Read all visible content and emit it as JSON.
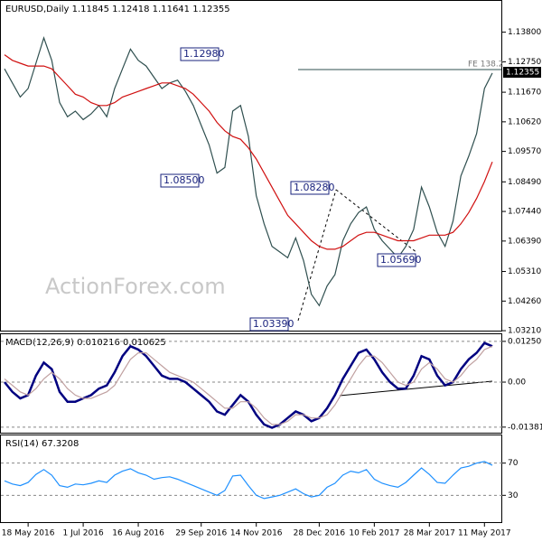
{
  "chart_data": [
    {
      "type": "line",
      "title": "EURUSD,Daily  1.11845 1.12418 1.11641 1.12355",
      "watermark": "ActionForex.com",
      "annotations": [
        "1.12980",
        "1.08500",
        "1.08280",
        "1.05690",
        "1.03390",
        "FE 138.2",
        "1.12355"
      ],
      "ylim": [
        1.0318,
        1.1491
      ],
      "yticks": [
        {
          "value": 1.138,
          "label": "1.13800"
        },
        {
          "value": 1.1275,
          "label": "1.12750"
        },
        {
          "value": 1.1167,
          "label": "1.11670"
        },
        {
          "value": 1.1062,
          "label": "1.10620"
        },
        {
          "value": 1.0957,
          "label": "1.09570"
        },
        {
          "value": 1.0849,
          "label": "1.08490"
        },
        {
          "value": 1.0744,
          "label": "1.07440"
        },
        {
          "value": 1.0639,
          "label": "1.06390"
        },
        {
          "value": 1.0531,
          "label": "1.05310"
        },
        {
          "value": 1.0426,
          "label": "1.04260"
        },
        {
          "value": 1.0321,
          "label": "1.03210"
        }
      ],
      "series": [
        {
          "color": "#2f4f4f",
          "values": [
            1.125,
            1.12,
            1.115,
            1.118,
            1.127,
            1.136,
            1.128,
            1.113,
            1.108,
            1.11,
            1.107,
            1.109,
            1.112,
            1.108,
            1.118,
            1.125,
            1.132,
            1.128,
            1.126,
            1.122,
            1.118,
            1.12,
            1.121,
            1.117,
            1.112,
            1.105,
            1.098,
            1.088,
            1.09,
            1.11,
            1.112,
            1.101,
            1.08,
            1.07,
            1.062,
            1.06,
            1.058,
            1.065,
            1.057,
            1.045,
            1.041,
            1.048,
            1.052,
            1.064,
            1.07,
            1.074,
            1.076,
            1.068,
            1.064,
            1.061,
            1.058,
            1.062,
            1.068,
            1.083,
            1.076,
            1.067,
            1.062,
            1.071,
            1.087,
            1.094,
            1.102,
            1.118,
            1.1235
          ]
        },
        {
          "color": "#d01010",
          "values": [
            1.13,
            1.128,
            1.127,
            1.126,
            1.126,
            1.126,
            1.125,
            1.122,
            1.119,
            1.116,
            1.115,
            1.113,
            1.112,
            1.112,
            1.113,
            1.115,
            1.116,
            1.117,
            1.118,
            1.119,
            1.12,
            1.12,
            1.119,
            1.118,
            1.116,
            1.113,
            1.11,
            1.106,
            1.103,
            1.101,
            1.1,
            1.097,
            1.093,
            1.088,
            1.083,
            1.078,
            1.073,
            1.07,
            1.067,
            1.064,
            1.062,
            1.061,
            1.061,
            1.062,
            1.064,
            1.066,
            1.067,
            1.067,
            1.066,
            1.065,
            1.064,
            1.064,
            1.064,
            1.065,
            1.066,
            1.066,
            1.066,
            1.067,
            1.07,
            1.074,
            1.079,
            1.085,
            1.092
          ]
        }
      ]
    },
    {
      "type": "line",
      "title": "MACD(12,26,9) 0.010216 0.010625",
      "ylim": [
        -0.0158,
        0.0147
      ],
      "yticks": [
        0.012509,
        {
          "value": 0,
          "label": "0.00"
        },
        -0.013813
      ],
      "series": [
        {
          "color": "#000080",
          "values": [
            0.0,
            -0.003,
            -0.005,
            -0.004,
            0.002,
            0.006,
            0.004,
            -0.003,
            -0.006,
            -0.006,
            -0.005,
            -0.004,
            -0.002,
            -0.001,
            0.003,
            0.008,
            0.011,
            0.01,
            0.008,
            0.005,
            0.002,
            0.001,
            0.001,
            0.0,
            -0.002,
            -0.004,
            -0.006,
            -0.009,
            -0.01,
            -0.007,
            -0.004,
            -0.006,
            -0.01,
            -0.013,
            -0.014,
            -0.013,
            -0.011,
            -0.009,
            -0.01,
            -0.012,
            -0.011,
            -0.008,
            -0.004,
            0.001,
            0.005,
            0.009,
            0.01,
            0.007,
            0.003,
            0.0,
            -0.002,
            -0.002,
            0.002,
            0.008,
            0.007,
            0.002,
            -0.001,
            0.0,
            0.004,
            0.007,
            0.009,
            0.012,
            0.011
          ]
        },
        {
          "color": "#c0a0a0",
          "values": [
            0.001,
            -0.001,
            -0.003,
            -0.004,
            -0.002,
            0.001,
            0.003,
            0.001,
            -0.002,
            -0.004,
            -0.005,
            -0.005,
            -0.004,
            -0.003,
            -0.001,
            0.003,
            0.007,
            0.009,
            0.009,
            0.007,
            0.005,
            0.003,
            0.002,
            0.001,
            0.0,
            -0.002,
            -0.004,
            -0.006,
            -0.008,
            -0.008,
            -0.006,
            -0.006,
            -0.008,
            -0.011,
            -0.013,
            -0.013,
            -0.012,
            -0.01,
            -0.01,
            -0.011,
            -0.011,
            -0.01,
            -0.007,
            -0.003,
            0.001,
            0.005,
            0.008,
            0.008,
            0.006,
            0.003,
            0.0,
            -0.001,
            0.0,
            0.004,
            0.006,
            0.004,
            0.001,
            0.0,
            0.002,
            0.005,
            0.007,
            0.01,
            0.011
          ]
        }
      ]
    },
    {
      "type": "line",
      "title": "RSI(14) 67.3208",
      "ylim": [
        -4.4,
        104.4
      ],
      "yticks": [
        70,
        30
      ],
      "categories": [
        null,
        null,
        null,
        "18 May 2016",
        null,
        null,
        null,
        null,
        null,
        null,
        "1 Jul 2016",
        null,
        null,
        null,
        null,
        null,
        null,
        "16 Aug 2016",
        null,
        null,
        null,
        null,
        null,
        null,
        null,
        "29 Sep 2016",
        null,
        null,
        null,
        null,
        null,
        null,
        "14 Nov 2016",
        null,
        null,
        null,
        null,
        null,
        null,
        null,
        "28 Dec 2016",
        null,
        null,
        null,
        null,
        null,
        null,
        "10 Feb 2017",
        null,
        null,
        null,
        null,
        null,
        null,
        "28 Mar 2017",
        null,
        null,
        null,
        null,
        null,
        null,
        "11 May 2017",
        null
      ],
      "series": [
        {
          "color": "#1e90ff",
          "values": [
            48,
            44,
            42,
            46,
            56,
            62,
            55,
            42,
            40,
            44,
            43,
            45,
            48,
            46,
            55,
            60,
            63,
            58,
            55,
            50,
            52,
            53,
            50,
            46,
            42,
            38,
            34,
            30,
            36,
            54,
            55,
            42,
            30,
            26,
            28,
            30,
            34,
            38,
            32,
            28,
            30,
            40,
            45,
            55,
            60,
            58,
            62,
            50,
            45,
            42,
            40,
            46,
            55,
            64,
            56,
            46,
            45,
            55,
            64,
            66,
            70,
            72,
            67.3
          ]
        }
      ]
    }
  ]
}
